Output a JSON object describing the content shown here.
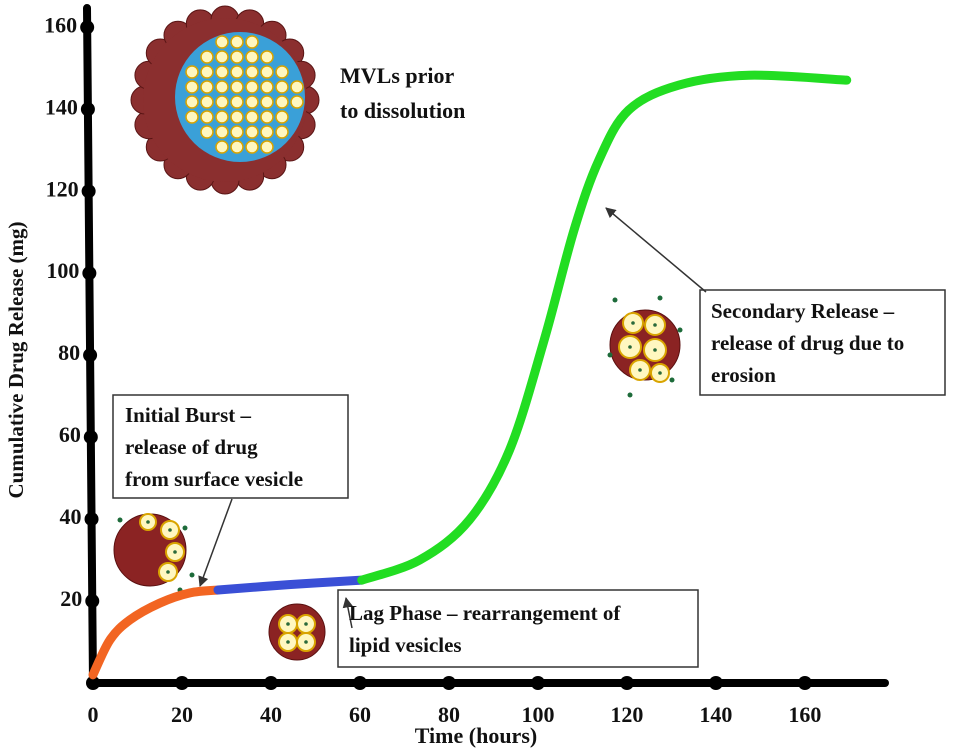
{
  "chart_data": {
    "type": "line",
    "x_label": "Time (hours)",
    "y_label": "Cumulative Drug Release (mg)",
    "xlim": [
      0,
      178
    ],
    "ylim": [
      0,
      163
    ],
    "xticks": [
      0,
      20,
      40,
      60,
      80,
      100,
      120,
      140,
      160
    ],
    "yticks": [
      20,
      40,
      60,
      80,
      100,
      120,
      140,
      160
    ],
    "series": [
      {
        "color": "#f26522",
        "x": [
          0,
          3.8,
          8.3,
          15.0,
          21.8,
          28.1
        ],
        "values": [
          2,
          10.5,
          15.4,
          19.5,
          22,
          22.7
        ]
      },
      {
        "color": "#3a4fd6",
        "x": [
          28.1,
          44,
          60.4
        ],
        "values": [
          22.7,
          24,
          25.1
        ]
      },
      {
        "color": "#22dd22",
        "x": [
          60.4,
          73.4,
          84.6,
          93.6,
          101.4,
          108.1,
          113.7,
          120.4,
          131.7,
          147.4,
          169.4
        ],
        "values": [
          25.1,
          30.0,
          39.8,
          56.8,
          83.7,
          110.5,
          127.6,
          139.8,
          145.9,
          148.3,
          147.1
        ]
      }
    ],
    "annotations": [
      {
        "lines": [
          "MVLs prior",
          "to dissolution"
        ]
      },
      {
        "lines": [
          "Initial Burst –",
          "release of drug",
          "from surface vesicle"
        ]
      },
      {
        "lines": [
          "Lag Phase – rearrangement of",
          "lipid vesicles"
        ]
      },
      {
        "lines": [
          "Secondary Release –",
          "release of drug due to",
          "erosion"
        ]
      }
    ]
  }
}
